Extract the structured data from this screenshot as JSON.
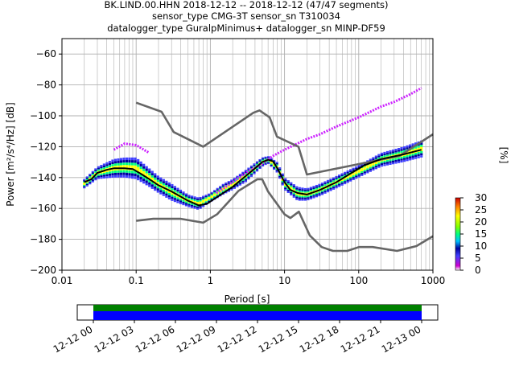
{
  "title": {
    "line1": "BK.LIND.00.HHN   2018-12-12 -- 2018-12-12  (47/47 segments)",
    "line2": "sensor_type CMG-3T sensor_sn T310034",
    "line3": "datalogger_type GuralpMinimus+ datalogger_sn MINP-DF59"
  },
  "colorbar": {
    "label": "[%]",
    "ticks": [
      "0",
      "5",
      "10",
      "15",
      "20",
      "25",
      "30"
    ],
    "vmin": 0,
    "vmax": 30
  },
  "colors": {
    "model": "#666666",
    "mean": "#000000",
    "coverage_top": "#008000",
    "coverage_bottom": "#0000ff"
  },
  "chart_data": {
    "type": "heatmap",
    "title": "BK.LIND.00.HHN   2018-12-12 -- 2018-12-12  (47/47 segments)",
    "xlabel": "Period [s]",
    "ylabel": "Power [m²/s⁴/Hz] [dB]",
    "xscale": "log",
    "xlim": [
      0.01,
      1000
    ],
    "ylim": [
      -200,
      -50
    ],
    "x_ticks": [
      "0.01",
      "0.1",
      "1",
      "10",
      "100",
      "1000"
    ],
    "y_ticks": [
      "−200",
      "−180",
      "−160",
      "−140",
      "−120",
      "−100",
      "−80",
      "−60"
    ],
    "grid": true,
    "series": [
      {
        "name": "",
        "kind": "high-noise-model",
        "x": [
          0.1,
          0.22,
          0.32,
          0.8,
          3.8,
          4.6,
          6.3,
          7.9,
          15.4,
          20,
          354.8,
          1000
        ],
        "y": [
          -91.5,
          -97.4,
          -110.5,
          -120,
          -98,
          -96.5,
          -101,
          -113.5,
          -120,
          -138,
          -126,
          -112
        ]
      },
      {
        "name": "",
        "kind": "low-noise-model",
        "x": [
          0.1,
          0.17,
          0.4,
          0.8,
          1.24,
          2.4,
          4.3,
          5.0,
          6.0,
          10,
          12,
          15.6,
          21.9,
          31.6,
          45,
          70,
          101,
          154,
          328,
          600,
          1000
        ],
        "y": [
          -168,
          -166.7,
          -166.7,
          -169.2,
          -163.7,
          -148.6,
          -141.1,
          -141.1,
          -149,
          -163.8,
          -166.2,
          -162.1,
          -177.5,
          -185,
          -187.5,
          -187.5,
          -185,
          -185,
          -187.5,
          -184.4,
          -178
        ]
      },
      {
        "name": "",
        "kind": "mean",
        "x": [
          0.02,
          0.025,
          0.03,
          0.04,
          0.05,
          0.07,
          0.09,
          0.12,
          0.15,
          0.2,
          0.3,
          0.5,
          0.7,
          0.9,
          1.2,
          2,
          3,
          4,
          5,
          6,
          7,
          8,
          10,
          12,
          15,
          20,
          30,
          50,
          80,
          120,
          200,
          400,
          700
        ],
        "y": [
          -143,
          -141,
          -137,
          -135,
          -134,
          -134,
          -134.5,
          -138,
          -141,
          -145,
          -149,
          -155,
          -158,
          -157,
          -153,
          -146,
          -139,
          -134,
          -130,
          -128.5,
          -129.5,
          -134,
          -143,
          -148,
          -150,
          -151,
          -148,
          -143,
          -137,
          -132,
          -128,
          -125,
          -122
        ]
      }
    ],
    "probability_band": {
      "x": [
        0.02,
        0.03,
        0.05,
        0.07,
        0.1,
        0.15,
        0.2,
        0.3,
        0.5,
        0.7,
        1,
        1.5,
        2,
        3,
        5,
        6,
        8,
        10,
        15,
        20,
        30,
        50,
        100,
        200,
        400,
        700
      ],
      "y_low": [
        -147,
        -141,
        -140,
        -140,
        -141,
        -146,
        -150,
        -155,
        -159,
        -161,
        -156,
        -151,
        -148,
        -143,
        -133,
        -131,
        -137,
        -148,
        -155,
        -155,
        -152,
        -147,
        -140,
        -133,
        -130,
        -127
      ],
      "y_high": [
        -141,
        -133,
        -128,
        -127,
        -127,
        -134,
        -139,
        -144,
        -151,
        -153,
        -150,
        -144,
        -141,
        -135,
        -127,
        -126,
        -130,
        -140,
        -146,
        -147,
        -144,
        -139,
        -132,
        -124,
        -120,
        -116
      ],
      "spread_upper": {
        "x": [
          0.05,
          0.07,
          0.1,
          0.15
        ],
        "y": [
          -122,
          -118,
          -119,
          -124
        ]
      },
      "spread_high_branch": {
        "x": [
          1.2,
          2,
          3,
          5,
          7,
          10,
          20,
          30,
          50,
          100,
          200,
          300,
          500,
          700
        ],
        "y": [
          -150,
          -143,
          -137,
          -131,
          -126,
          -122,
          -115,
          -112,
          -107,
          -101,
          -94,
          -91,
          -86,
          -82
        ]
      }
    },
    "coverage": {
      "xlabel_ticks": [
        "12-12 00",
        "12-12 03",
        "12-12 06",
        "12-12 09",
        "12-12 12",
        "12-12 15",
        "12-12 18",
        "12-12 21",
        "12-13 00"
      ],
      "range": [
        "12-12 00",
        "12-13 00"
      ]
    }
  }
}
